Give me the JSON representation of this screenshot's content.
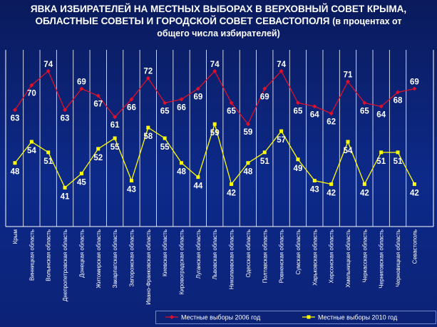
{
  "title": {
    "line1": "ЯВКА ИЗБИРАТЕЛЕЙ НА МЕСТНЫХ ВЫБОРАХ В ВЕРХОВНЫЙ СОВЕТ КРЫМА,",
    "line2": "ОБЛАСТНЫЕ СОВЕТЫ И ГОРОДСКОЙ СОВЕТ СЕВАСТОПОЛЯ",
    "line2_sub": "(в процентах от",
    "line3": "общего числа избирателей)"
  },
  "colors": {
    "background": "#0d2a8a",
    "series_2006": "#e0102a",
    "series_2010": "#ffff00",
    "gridline": "#ffffff",
    "text": "#ffffff"
  },
  "chart_data": {
    "type": "line",
    "categories": [
      "Крым",
      "Винницкая область",
      "Волынская область",
      "Днепропетровская область",
      "Донецкая область",
      "Житомирская область",
      "Закарпатская область",
      "Запорожская область",
      "Ивано-Франковская область",
      "Киевская область",
      "Кировоградская область",
      "Луганская область",
      "Львовская область",
      "Николаевская область",
      "Одесская область",
      "Полтавская область",
      "Ровненская область",
      "Сумская область",
      "Харьковская область",
      "Херсонская область",
      "Хмельницкая область",
      "Черкасская область",
      "Черниговская область",
      "Черновицкая область",
      "Севастополь"
    ],
    "series": [
      {
        "name": "Местные выборы 2006 год",
        "color": "#e0102a",
        "values": [
          63,
          70,
          74,
          63,
          69,
          67,
          61,
          66,
          72,
          65,
          66,
          69,
          74,
          65,
          59,
          69,
          74,
          65,
          64,
          62,
          71,
          65,
          64,
          68,
          69
        ]
      },
      {
        "name": "Местные выборы 2010 год",
        "color": "#ffff00",
        "values": [
          48,
          54,
          51,
          41,
          45,
          52,
          55,
          43,
          58,
          55,
          48,
          44,
          59,
          42,
          48,
          51,
          57,
          49,
          43,
          42,
          54,
          42,
          51,
          51,
          42
        ]
      }
    ],
    "ylim": [
      30,
      80
    ],
    "grid": "vertical",
    "legend": "bottom-right"
  }
}
